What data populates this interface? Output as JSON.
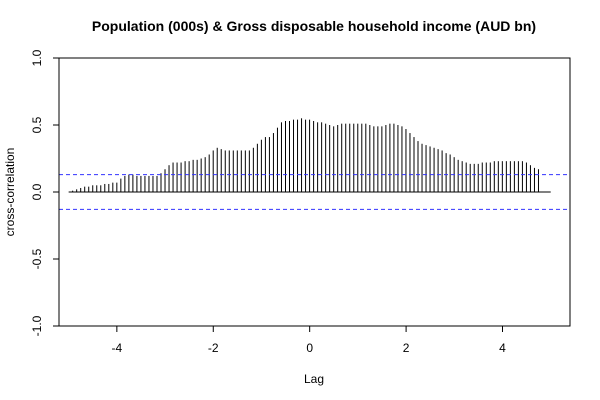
{
  "chart_data": {
    "type": "bar",
    "title": "Population (000s) & Gross disposable household income (AUD bn)",
    "xlabel": "Lag",
    "ylabel": "cross-correlation",
    "xlim": [
      -5.2,
      5.4
    ],
    "ylim": [
      -1.0,
      1.0
    ],
    "xticks": [
      -4,
      -2,
      0,
      2,
      4
    ],
    "xtick_labels": [
      "-4",
      "-2",
      "0",
      "2",
      "4"
    ],
    "yticks": [
      -1.0,
      -0.5,
      0.0,
      0.5,
      1.0
    ],
    "ytick_labels": [
      "-1.0",
      "-0.5",
      "0.0",
      "0.5",
      "1.0"
    ],
    "confidence_bound": 0.13,
    "line_color": "#000000",
    "bound_color": "#3333ff",
    "series": [
      {
        "lag_start": -5.0,
        "lag_step": 0.0833,
        "values": [
          0.0,
          0.01,
          0.02,
          0.03,
          0.04,
          0.04,
          0.05,
          0.05,
          0.05,
          0.06,
          0.06,
          0.07,
          0.07,
          0.1,
          0.12,
          0.13,
          0.13,
          0.12,
          0.12,
          0.12,
          0.12,
          0.12,
          0.12,
          0.14,
          0.17,
          0.2,
          0.22,
          0.22,
          0.22,
          0.23,
          0.23,
          0.24,
          0.24,
          0.25,
          0.26,
          0.28,
          0.31,
          0.33,
          0.32,
          0.31,
          0.31,
          0.31,
          0.31,
          0.31,
          0.31,
          0.31,
          0.33,
          0.36,
          0.39,
          0.41,
          0.41,
          0.44,
          0.48,
          0.52,
          0.53,
          0.53,
          0.54,
          0.54,
          0.55,
          0.54,
          0.54,
          0.53,
          0.52,
          0.52,
          0.51,
          0.5,
          0.49,
          0.5,
          0.51,
          0.51,
          0.51,
          0.51,
          0.51,
          0.51,
          0.51,
          0.5,
          0.49,
          0.49,
          0.49,
          0.5,
          0.51,
          0.51,
          0.5,
          0.49,
          0.47,
          0.44,
          0.41,
          0.38,
          0.36,
          0.35,
          0.34,
          0.33,
          0.32,
          0.31,
          0.29,
          0.28,
          0.26,
          0.24,
          0.23,
          0.22,
          0.21,
          0.21,
          0.21,
          0.22,
          0.22,
          0.22,
          0.23,
          0.23,
          0.23,
          0.23,
          0.23,
          0.23,
          0.23,
          0.23,
          0.22,
          0.2,
          0.18,
          0.17
        ]
      }
    ]
  }
}
